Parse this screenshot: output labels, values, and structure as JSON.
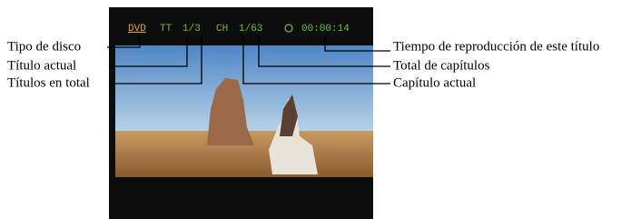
{
  "osd": {
    "disc_type": "DVD",
    "title_tag": "TT",
    "title": "1/3",
    "chapter_tag": "CH",
    "chapter": "1/63",
    "time": "00:00:14"
  },
  "labels": {
    "left": [
      "Tipo de disco",
      "Título actual",
      "Títulos en total"
    ],
    "right": [
      "Tiempo de reproducción de este título",
      "Total de capítulos",
      "Capítulo actual"
    ]
  }
}
